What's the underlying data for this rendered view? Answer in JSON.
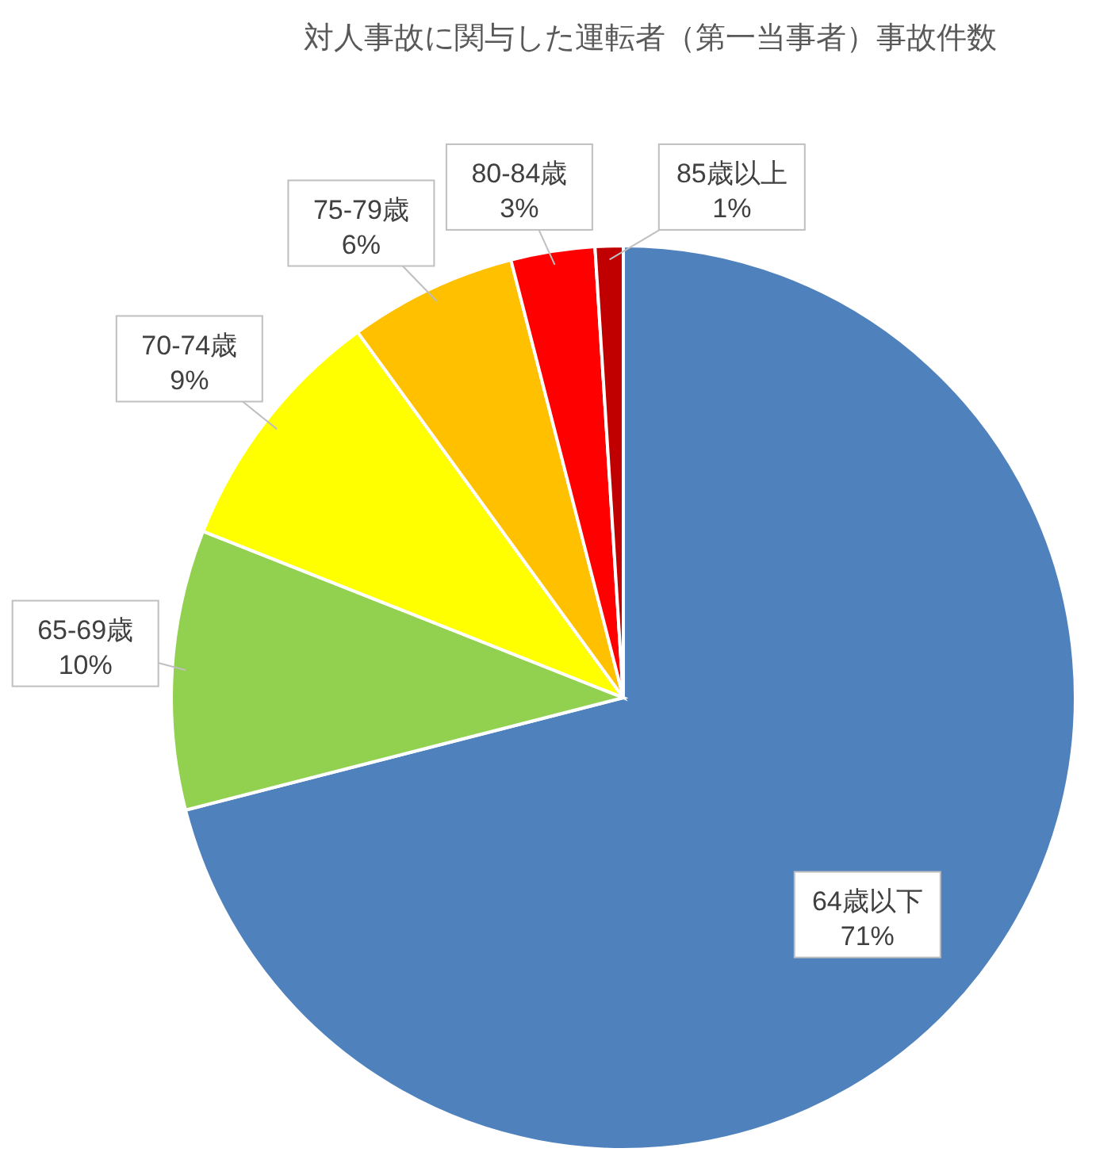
{
  "chart_data": {
    "type": "pie",
    "title": "対人事故に関与した運転者（第一当事者）事故件数",
    "categories": [
      "64歳以下",
      "65-69歳",
      "70-74歳",
      "75-79歳",
      "80-84歳",
      "85歳以上"
    ],
    "values": [
      71,
      10,
      9,
      6,
      3,
      1
    ],
    "value_labels": [
      "71%",
      "10%",
      "9%",
      "6%",
      "3%",
      "1%"
    ],
    "colors": [
      "#4f81bd",
      "#92d050",
      "#ffff00",
      "#ffc000",
      "#ff0000",
      "#c00000"
    ]
  }
}
